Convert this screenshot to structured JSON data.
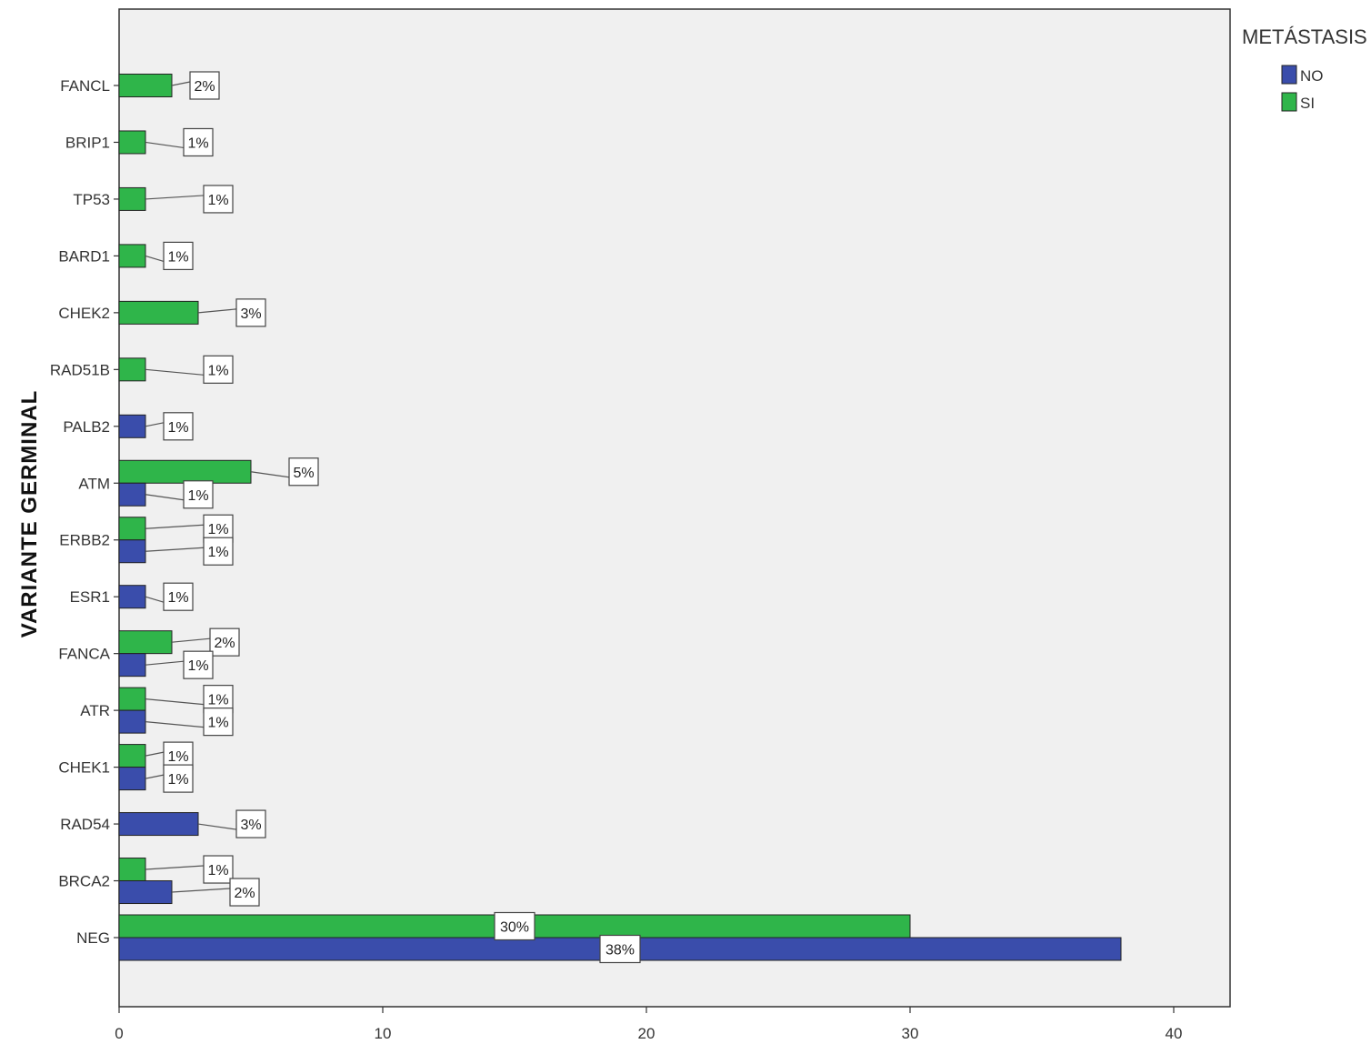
{
  "chart_data": {
    "type": "bar",
    "orientation": "horizontal",
    "ylabel": "VARIANTE GERMINAL",
    "xlabel": "",
    "xlim": [
      0,
      42
    ],
    "xticks": [
      0,
      10,
      20,
      30,
      40
    ],
    "xtick_labels": [
      "0",
      "10",
      "20",
      "30",
      "40"
    ],
    "grid": false,
    "legend": {
      "title": "METÁSTASIS",
      "position": "top-right"
    },
    "categories": [
      "FANCL",
      "BRIP1",
      "TP53",
      "BARD1",
      "CHEK2",
      "RAD51B",
      "PALB2",
      "ATM",
      "ERBB2",
      "ESR1",
      "FANCA",
      "ATR",
      "CHEK1",
      "RAD54",
      "BRCA2",
      "NEG"
    ],
    "series": [
      {
        "name": "NO",
        "color": "#3a4dab",
        "values": [
          null,
          null,
          null,
          null,
          null,
          null,
          1,
          1,
          1,
          1,
          1,
          1,
          1,
          3,
          2,
          38
        ],
        "labels": [
          null,
          null,
          null,
          null,
          null,
          null,
          "1%",
          "1%",
          "1%",
          "1%",
          "1%",
          "1%",
          "1%",
          "3%",
          "2%",
          "38%"
        ]
      },
      {
        "name": "SI",
        "color": "#2fb54a",
        "values": [
          2,
          1,
          1,
          1,
          3,
          1,
          null,
          5,
          1,
          null,
          2,
          1,
          1,
          null,
          1,
          30
        ],
        "labels": [
          "2%",
          "1%",
          "1%",
          "1%",
          "3%",
          "1%",
          null,
          "5%",
          "1%",
          null,
          "2%",
          "1%",
          "1%",
          null,
          "1%",
          "30%"
        ]
      }
    ]
  }
}
